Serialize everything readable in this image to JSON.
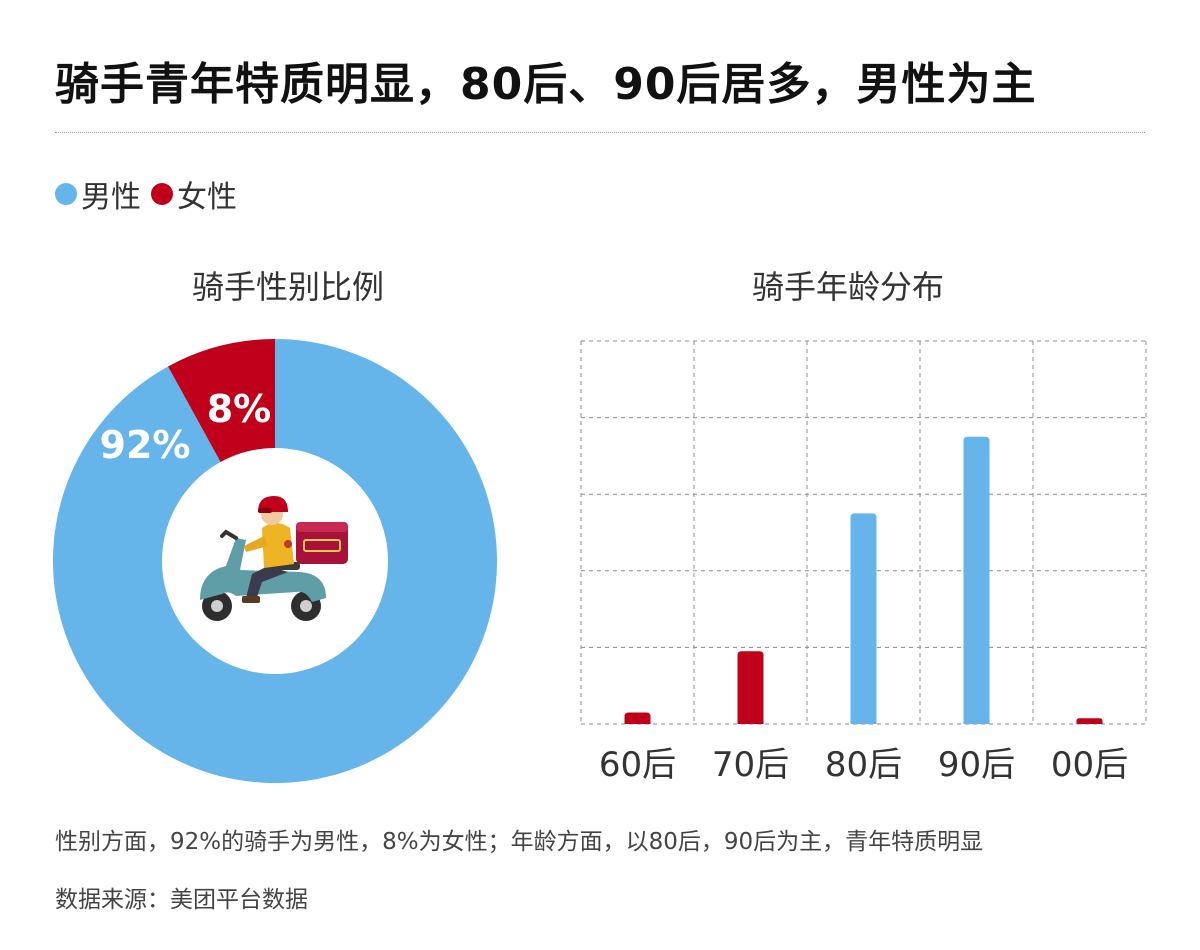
{
  "title": "骑手青年特质明显，80后、90后居多，男性为主",
  "legend": [
    {
      "label": "男性",
      "color": "#66b5ea"
    },
    {
      "label": "女性",
      "color": "#c0001a"
    }
  ],
  "chart_data": [
    {
      "type": "pie",
      "title": "骑手性别比例",
      "donut": true,
      "center_icon": "delivery-scooter-rider-icon",
      "slices": [
        {
          "name": "男性",
          "value": 92,
          "label": "92%",
          "color": "#66b5ea"
        },
        {
          "name": "女性",
          "value": 8,
          "label": "8%",
          "color": "#c0001a"
        }
      ]
    },
    {
      "type": "bar",
      "title": "骑手年龄分布",
      "categories": [
        "60后",
        "70后",
        "80后",
        "90后",
        "00后"
      ],
      "values": [
        3,
        19,
        55,
        75,
        1.5
      ],
      "colors": [
        "#c0001a",
        "#c0001a",
        "#66b5ea",
        "#66b5ea",
        "#c0001a"
      ],
      "ylim": [
        0,
        100
      ],
      "grid": true,
      "y_tick_labels_shown": false
    }
  ],
  "notes": {
    "description": "性别方面，92%的骑手为男性，8%为女性；年龄方面，以80后，90后为主，青年特质明显",
    "source": "数据来源：美团平台数据"
  }
}
